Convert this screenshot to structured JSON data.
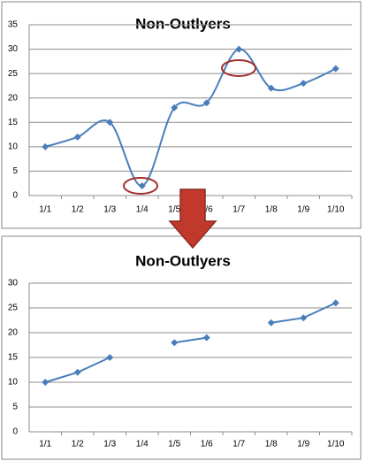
{
  "chart_data": [
    {
      "type": "line",
      "title": "Non-Outlyers",
      "categories": [
        "1/1",
        "1/2",
        "1/3",
        "1/4",
        "1/5",
        "1/6",
        "1/7",
        "1/8",
        "1/9",
        "1/10"
      ],
      "values": [
        10,
        12,
        15,
        2,
        18,
        19,
        30,
        22,
        23,
        26
      ],
      "color": "#4a7ebb",
      "smooth": true,
      "ylim": [
        0,
        35
      ],
      "yticks": [
        0,
        5,
        10,
        15,
        20,
        25,
        30,
        35
      ],
      "grid": true
    },
    {
      "type": "line",
      "title": "Non-Outlyers",
      "categories": [
        "1/1",
        "1/2",
        "1/3",
        "1/4",
        "1/5",
        "1/6",
        "1/7",
        "1/8",
        "1/9",
        "1/10"
      ],
      "values": [
        10,
        12,
        15,
        null,
        18,
        19,
        null,
        22,
        23,
        26
      ],
      "color": "#4a7ebb",
      "smooth": false,
      "ylim": [
        0,
        30
      ],
      "yticks": [
        0,
        5,
        10,
        15,
        20,
        25,
        30
      ],
      "grid": true
    }
  ]
}
